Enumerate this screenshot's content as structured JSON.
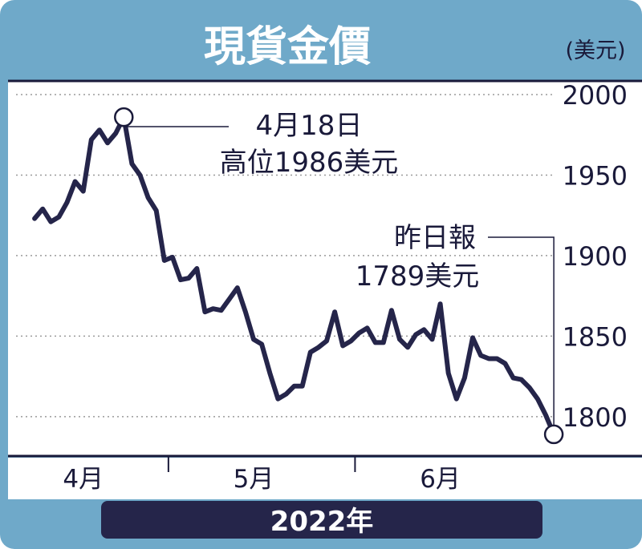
{
  "colors": {
    "frame": "#6fa9c9",
    "line": "#25254a",
    "year_bar": "#25254a",
    "grid": "#9a9a9a"
  },
  "chart_data": {
    "type": "line",
    "title": "現貨金價",
    "unit": "(美元)",
    "year_label": "2022年",
    "month_labels": [
      {
        "label": "4月",
        "x": 6
      },
      {
        "label": "5月",
        "x": 27
      },
      {
        "label": "6月",
        "x": 50
      }
    ],
    "month_dividers": [
      16.5,
      39.5
    ],
    "ylim": [
      1780,
      2005
    ],
    "yticks": [
      2000,
      1950,
      1900,
      1850,
      1800
    ],
    "grid": true,
    "xlim": [
      -0.5,
      63
    ],
    "series": [
      {
        "values": [
          1923,
          1929,
          1921,
          1924,
          1933,
          1946,
          1940,
          1972,
          1978,
          1970,
          1976,
          1986,
          1957,
          1950,
          1936,
          1928,
          1897,
          1899,
          1885,
          1886,
          1892,
          1865,
          1867,
          1866,
          1873,
          1880,
          1865,
          1848,
          1845,
          1827,
          1811,
          1814,
          1819,
          1819,
          1840,
          1843,
          1847,
          1865,
          1844,
          1847,
          1852,
          1855,
          1846,
          1846,
          1866,
          1848,
          1843,
          1851,
          1854,
          1848,
          1870,
          1827,
          1811,
          1824,
          1849,
          1838,
          1836,
          1836,
          1833,
          1824,
          1823,
          1818,
          1811,
          1801,
          1789
        ]
      }
    ],
    "annotations": [
      {
        "x": 11,
        "y": 1986,
        "line1": "4月18日",
        "line2": "高位1986美元"
      },
      {
        "x": 64,
        "y": 1789,
        "line1": "昨日報",
        "line2": "1789美元"
      }
    ]
  }
}
